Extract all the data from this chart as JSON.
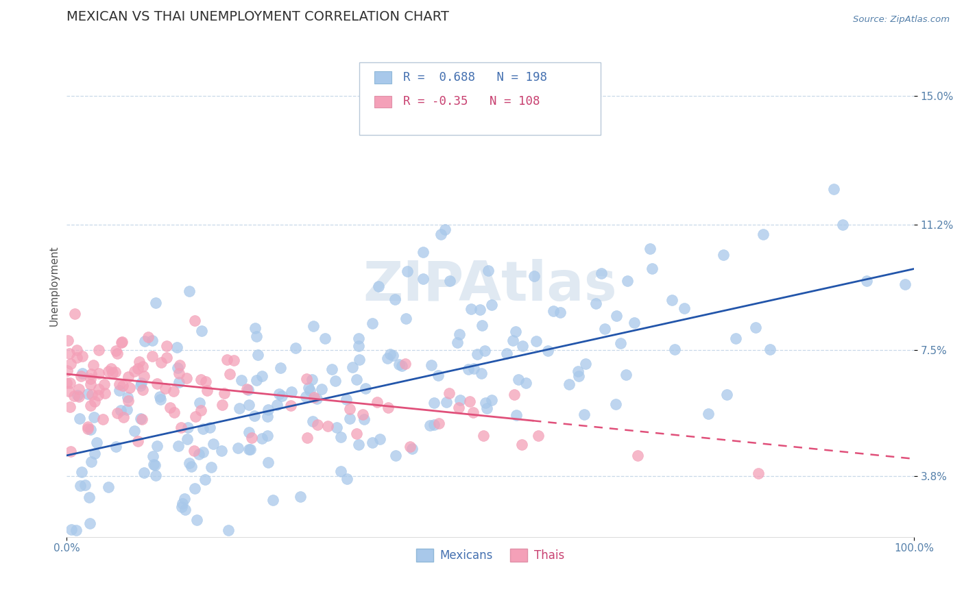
{
  "title": "MEXICAN VS THAI UNEMPLOYMENT CORRELATION CHART",
  "source": "Source: ZipAtlas.com",
  "ylabel": "Unemployment",
  "xlim": [
    0,
    1.0
  ],
  "ylim": [
    0.02,
    0.168
  ],
  "ytick_positions": [
    0.038,
    0.075,
    0.112,
    0.15
  ],
  "ytick_labels": [
    "3.8%",
    "7.5%",
    "11.2%",
    "15.0%"
  ],
  "mexican_color": "#a8c8ea",
  "thai_color": "#f4a0b8",
  "mexican_line_color": "#2255aa",
  "thai_line_solid_color": "#e0507a",
  "thai_line_dash_color": "#e0507a",
  "legend_mexican_label": "Mexicans",
  "legend_thai_label": "Thais",
  "r_mexican": 0.688,
  "n_mexican": 198,
  "r_thai": -0.35,
  "n_thai": 108,
  "mexican_slope": 0.055,
  "mexican_intercept": 0.044,
  "thai_slope": -0.025,
  "thai_intercept": 0.068,
  "background_color": "#ffffff",
  "grid_color": "#c8d8e8",
  "watermark": "ZIPAtlas",
  "title_fontsize": 14,
  "axis_label_fontsize": 11,
  "tick_fontsize": 11,
  "marker_size": 130,
  "seed_mexican": 42,
  "seed_thai": 7
}
